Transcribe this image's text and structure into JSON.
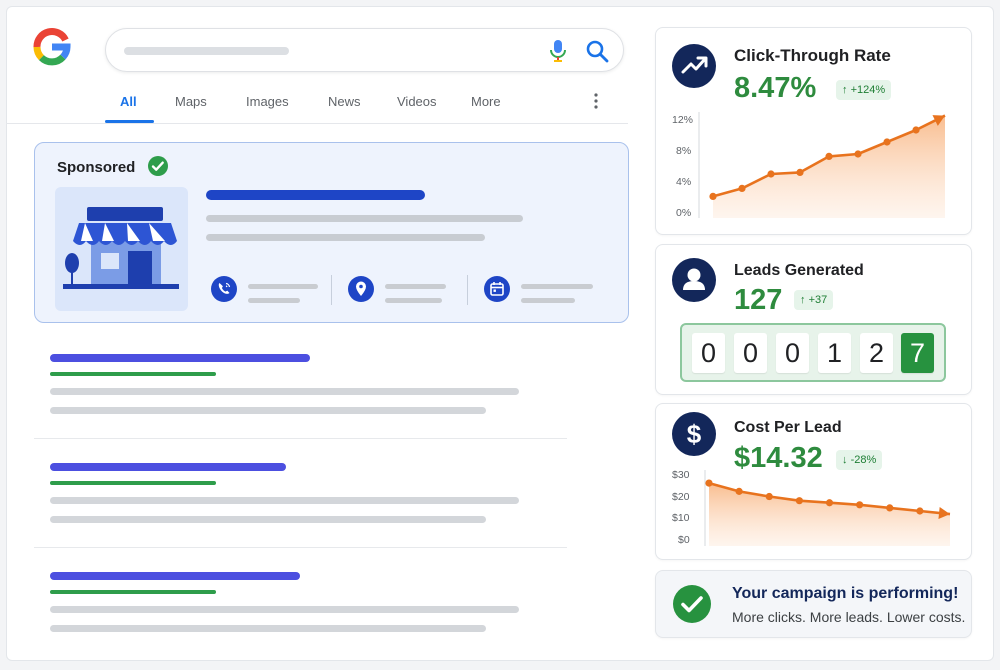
{
  "search": {
    "tabs": [
      {
        "label": "All",
        "active": true
      },
      {
        "label": "Maps"
      },
      {
        "label": "Images"
      },
      {
        "label": "News"
      },
      {
        "label": "Videos"
      },
      {
        "label": "More"
      }
    ]
  },
  "sponsored": {
    "label": "Sponsored"
  },
  "icons": {
    "logo": "google-logo",
    "mic": "mic-icon",
    "search": "search-icon",
    "kebab": "more-vert-icon",
    "verified": "check-circle-icon",
    "store": "storefront-icon",
    "actions": [
      "phone-icon",
      "location-pin-icon",
      "calendar-icon"
    ],
    "ctr": "trending-up-icon",
    "leads": "person-icon",
    "cpl": "dollar-icon",
    "campaign": "check-circle-icon"
  },
  "metrics": {
    "ctr": {
      "title": "Click-Through Rate",
      "value": "8.47%",
      "change": "+124%"
    },
    "leads": {
      "title": "Leads Generated",
      "value": "127",
      "change": "+37",
      "counter_digits": [
        "0",
        "0",
        "0",
        "1",
        "2",
        "7"
      ]
    },
    "cpl": {
      "title": "Cost Per Lead",
      "value": "$14.32",
      "change": "-28%"
    }
  },
  "campaign": {
    "title": "Your campaign is performing!",
    "subtitle": "More clicks. More leads. Lower costs."
  },
  "colors": {
    "accent_blue": "#1a73e8",
    "navy": "#13275a",
    "green": "#2e8b3e",
    "orange": "#e8731e"
  },
  "chart_data": [
    {
      "type": "area",
      "yticks": [
        "12%",
        "8%",
        "4%",
        "0%"
      ],
      "ylim": [
        0,
        12
      ],
      "values": [
        2.2,
        3.2,
        5.0,
        5.2,
        7.2,
        7.5,
        9.0,
        10.5,
        12.3
      ]
    },
    {
      "type": "area",
      "yticks": [
        "$30",
        "$20",
        "$10",
        "$0"
      ],
      "ylim": [
        0,
        30
      ],
      "values": [
        28.5,
        24.5,
        22.0,
        20.0,
        19.0,
        18.0,
        16.5,
        15.0,
        13.5
      ]
    }
  ]
}
